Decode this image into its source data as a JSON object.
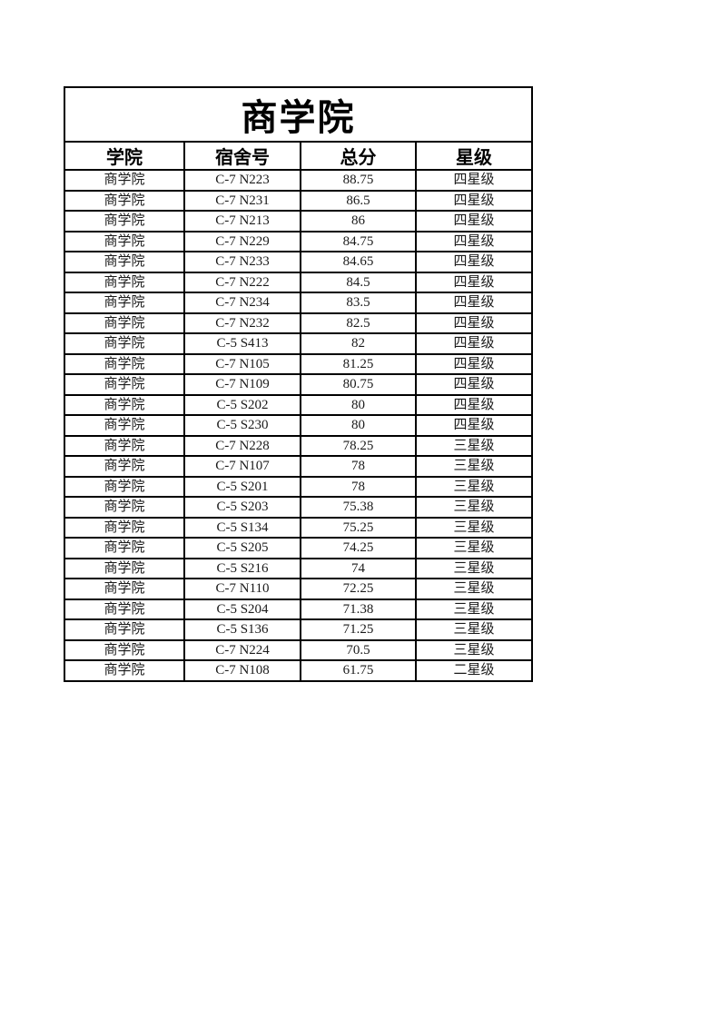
{
  "page": {
    "background": "#ffffff",
    "border_color": "#000000",
    "header_text_color": "#000000",
    "body_text_color": "#1a1a1a"
  },
  "table": {
    "title": "商学院",
    "columns": [
      "学院",
      "宿舍号",
      "总分",
      "星级"
    ],
    "rows": [
      [
        "商学院",
        "C-7 N223",
        "88.75",
        "四星级"
      ],
      [
        "商学院",
        "C-7 N231",
        "86.5",
        "四星级"
      ],
      [
        "商学院",
        "C-7 N213",
        "86",
        "四星级"
      ],
      [
        "商学院",
        "C-7 N229",
        "84.75",
        "四星级"
      ],
      [
        "商学院",
        "C-7 N233",
        "84.65",
        "四星级"
      ],
      [
        "商学院",
        "C-7 N222",
        "84.5",
        "四星级"
      ],
      [
        "商学院",
        "C-7 N234",
        "83.5",
        "四星级"
      ],
      [
        "商学院",
        "C-7 N232",
        "82.5",
        "四星级"
      ],
      [
        "商学院",
        "C-5 S413",
        "82",
        "四星级"
      ],
      [
        "商学院",
        "C-7 N105",
        "81.25",
        "四星级"
      ],
      [
        "商学院",
        "C-7 N109",
        "80.75",
        "四星级"
      ],
      [
        "商学院",
        "C-5 S202",
        "80",
        "四星级"
      ],
      [
        "商学院",
        "C-5 S230",
        "80",
        "四星级"
      ],
      [
        "商学院",
        "C-7 N228",
        "78.25",
        "三星级"
      ],
      [
        "商学院",
        "C-7 N107",
        "78",
        "三星级"
      ],
      [
        "商学院",
        "C-5 S201",
        "78",
        "三星级"
      ],
      [
        "商学院",
        "C-5 S203",
        "75.38",
        "三星级"
      ],
      [
        "商学院",
        "C-5 S134",
        "75.25",
        "三星级"
      ],
      [
        "商学院",
        "C-5 S205",
        "74.25",
        "三星级"
      ],
      [
        "商学院",
        "C-5 S216",
        "74",
        "三星级"
      ],
      [
        "商学院",
        "C-7 N110",
        "72.25",
        "三星级"
      ],
      [
        "商学院",
        "C-5 S204",
        "71.38",
        "三星级"
      ],
      [
        "商学院",
        "C-5 S136",
        "71.25",
        "三星级"
      ],
      [
        "商学院",
        "C-7 N224",
        "70.5",
        "三星级"
      ],
      [
        "商学院",
        "C-7 N108",
        "61.75",
        "二星级"
      ]
    ]
  }
}
